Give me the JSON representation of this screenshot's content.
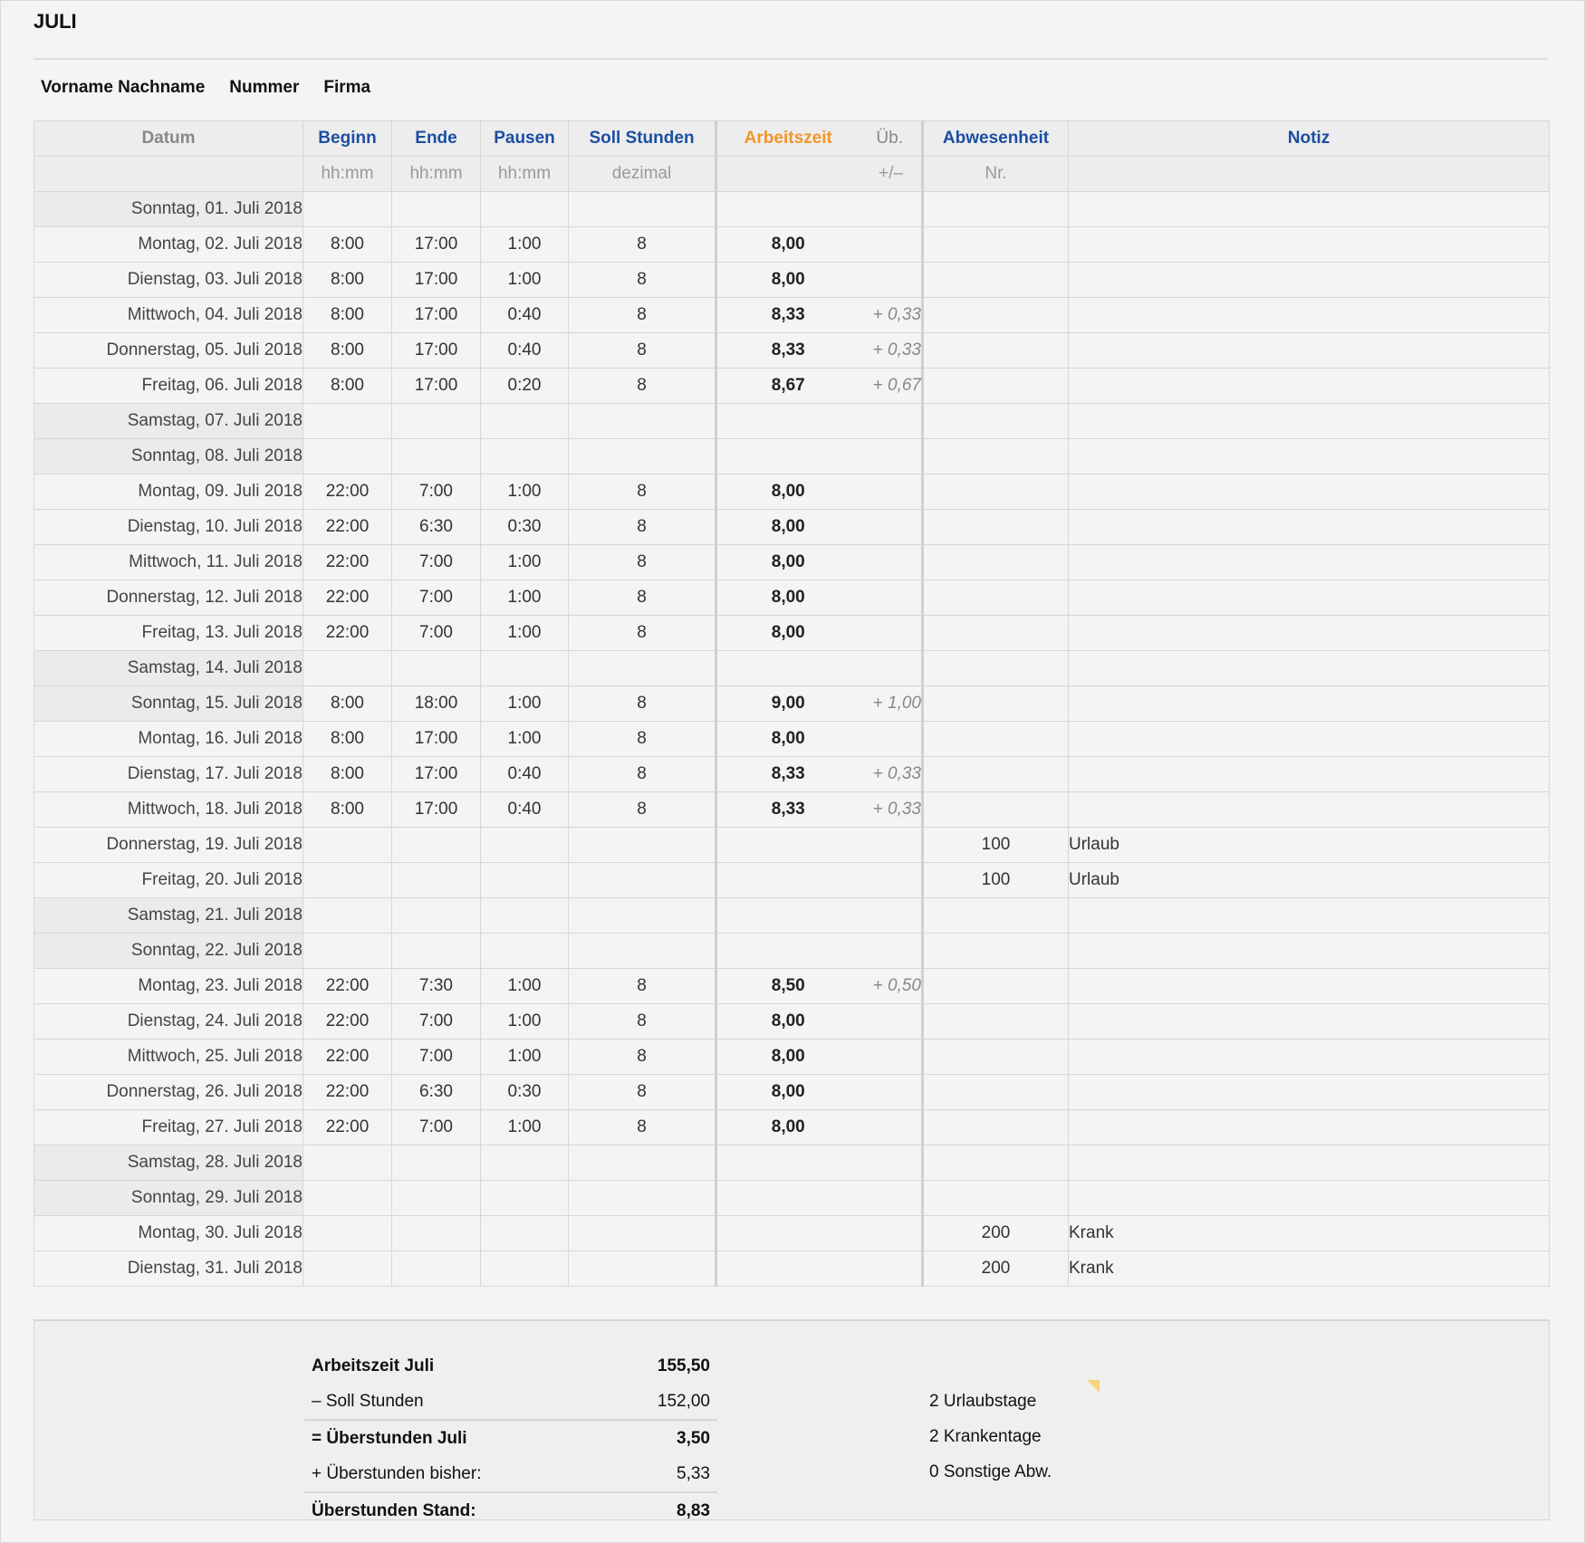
{
  "title": "JULI",
  "meta": [
    "Vorname Nachname",
    "Nummer",
    "Firma"
  ],
  "colors": {
    "header_blue": "#1c4ea3",
    "header_orange": "#f0962a"
  },
  "header": {
    "datum": "Datum",
    "beginn": "Beginn",
    "ende": "Ende",
    "pausen": "Pausen",
    "soll": "Soll Stunden",
    "arbeitszeit": "Arbeitszeit",
    "ub": "Üb.",
    "abwesenheit": "Abwesenheit",
    "notiz": "Notiz",
    "beginn_unit": "hh:mm",
    "ende_unit": "hh:mm",
    "pausen_unit": "hh:mm",
    "soll_unit": "dezimal",
    "ub_unit": "+/–",
    "abw_unit": "Nr."
  },
  "rows": [
    {
      "date": "Sonntag, 01. Juli 2018",
      "weekend": true
    },
    {
      "date": "Montag, 02. Juli 2018",
      "beginn": "8:00",
      "ende": "17:00",
      "pausen": "1:00",
      "soll": "8",
      "arbeitszeit": "8,00"
    },
    {
      "date": "Dienstag, 03. Juli 2018",
      "beginn": "8:00",
      "ende": "17:00",
      "pausen": "1:00",
      "soll": "8",
      "arbeitszeit": "8,00"
    },
    {
      "date": "Mittwoch, 04. Juli 2018",
      "beginn": "8:00",
      "ende": "17:00",
      "pausen": "0:40",
      "soll": "8",
      "arbeitszeit": "8,33",
      "ub": "+ 0,33"
    },
    {
      "date": "Donnerstag, 05. Juli 2018",
      "beginn": "8:00",
      "ende": "17:00",
      "pausen": "0:40",
      "soll": "8",
      "arbeitszeit": "8,33",
      "ub": "+ 0,33"
    },
    {
      "date": "Freitag, 06. Juli 2018",
      "beginn": "8:00",
      "ende": "17:00",
      "pausen": "0:20",
      "soll": "8",
      "arbeitszeit": "8,67",
      "ub": "+ 0,67"
    },
    {
      "date": "Samstag, 07. Juli 2018",
      "weekend": true
    },
    {
      "date": "Sonntag, 08. Juli 2018",
      "weekend": true
    },
    {
      "date": "Montag, 09. Juli 2018",
      "beginn": "22:00",
      "ende": "7:00",
      "pausen": "1:00",
      "soll": "8",
      "arbeitszeit": "8,00"
    },
    {
      "date": "Dienstag, 10. Juli 2018",
      "beginn": "22:00",
      "ende": "6:30",
      "pausen": "0:30",
      "soll": "8",
      "arbeitszeit": "8,00"
    },
    {
      "date": "Mittwoch, 11. Juli 2018",
      "beginn": "22:00",
      "ende": "7:00",
      "pausen": "1:00",
      "soll": "8",
      "arbeitszeit": "8,00"
    },
    {
      "date": "Donnerstag, 12. Juli 2018",
      "beginn": "22:00",
      "ende": "7:00",
      "pausen": "1:00",
      "soll": "8",
      "arbeitszeit": "8,00"
    },
    {
      "date": "Freitag, 13. Juli 2018",
      "beginn": "22:00",
      "ende": "7:00",
      "pausen": "1:00",
      "soll": "8",
      "arbeitszeit": "8,00"
    },
    {
      "date": "Samstag, 14. Juli 2018",
      "weekend": true
    },
    {
      "date": "Sonntag, 15. Juli 2018",
      "weekend": true,
      "beginn": "8:00",
      "ende": "18:00",
      "pausen": "1:00",
      "soll": "8",
      "arbeitszeit": "9,00",
      "ub": "+ 1,00"
    },
    {
      "date": "Montag, 16. Juli 2018",
      "beginn": "8:00",
      "ende": "17:00",
      "pausen": "1:00",
      "soll": "8",
      "arbeitszeit": "8,00"
    },
    {
      "date": "Dienstag, 17. Juli 2018",
      "beginn": "8:00",
      "ende": "17:00",
      "pausen": "0:40",
      "soll": "8",
      "arbeitszeit": "8,33",
      "ub": "+ 0,33"
    },
    {
      "date": "Mittwoch, 18. Juli 2018",
      "beginn": "8:00",
      "ende": "17:00",
      "pausen": "0:40",
      "soll": "8",
      "arbeitszeit": "8,33",
      "ub": "+ 0,33"
    },
    {
      "date": "Donnerstag, 19. Juli 2018",
      "abw": "100",
      "notiz": "Urlaub"
    },
    {
      "date": "Freitag, 20. Juli 2018",
      "abw": "100",
      "notiz": "Urlaub"
    },
    {
      "date": "Samstag, 21. Juli 2018",
      "weekend": true
    },
    {
      "date": "Sonntag, 22. Juli 2018",
      "weekend": true
    },
    {
      "date": "Montag, 23. Juli 2018",
      "beginn": "22:00",
      "ende": "7:30",
      "pausen": "1:00",
      "soll": "8",
      "arbeitszeit": "8,50",
      "ub": "+ 0,50"
    },
    {
      "date": "Dienstag, 24. Juli 2018",
      "beginn": "22:00",
      "ende": "7:00",
      "pausen": "1:00",
      "soll": "8",
      "arbeitszeit": "8,00"
    },
    {
      "date": "Mittwoch, 25. Juli 2018",
      "beginn": "22:00",
      "ende": "7:00",
      "pausen": "1:00",
      "soll": "8",
      "arbeitszeit": "8,00"
    },
    {
      "date": "Donnerstag, 26. Juli 2018",
      "beginn": "22:00",
      "ende": "6:30",
      "pausen": "0:30",
      "soll": "8",
      "arbeitszeit": "8,00"
    },
    {
      "date": "Freitag, 27. Juli 2018",
      "beginn": "22:00",
      "ende": "7:00",
      "pausen": "1:00",
      "soll": "8",
      "arbeitszeit": "8,00"
    },
    {
      "date": "Samstag, 28. Juli 2018",
      "weekend": true
    },
    {
      "date": "Sonntag, 29. Juli 2018",
      "weekend": true
    },
    {
      "date": "Montag, 30. Juli 2018",
      "abw": "200",
      "notiz": "Krank"
    },
    {
      "date": "Dienstag, 31. Juli 2018",
      "abw": "200",
      "notiz": "Krank"
    }
  ],
  "summary": [
    {
      "label": "Arbeitszeit Juli",
      "value": "155,50",
      "bold": true
    },
    {
      "label": "– Soll Stunden",
      "value": "152,00"
    },
    {
      "label": "= Überstunden Juli",
      "value": "3,50",
      "bold": true,
      "line": true
    },
    {
      "label": "+ Überstunden bisher:",
      "value": "5,33"
    },
    {
      "label": "Überstunden Stand:",
      "value": "8,83",
      "bold": true,
      "line": true
    }
  ],
  "absences": [
    "2 Urlaubstage",
    "2 Krankentage",
    "0 Sonstige Abw."
  ]
}
